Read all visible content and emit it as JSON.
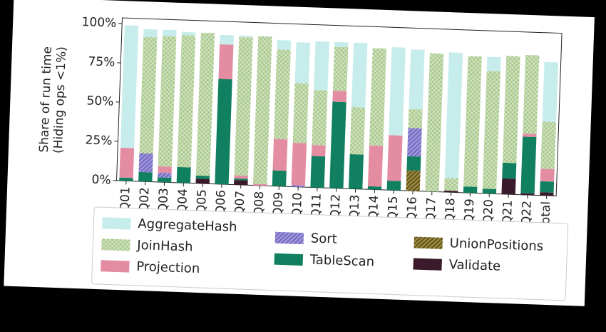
{
  "chart_data": {
    "type": "stacked_bar",
    "y_label": [
      "Share of run time",
      "(Hiding ops <1%)"
    ],
    "categories": [
      "Q01",
      "Q02",
      "Q03",
      "Q04",
      "Q05",
      "Q06",
      "Q07",
      "Q08",
      "Q09",
      "Q10",
      "Q11",
      "Q12",
      "Q13",
      "Q14",
      "Q15",
      "Q16",
      "Q17",
      "Q18",
      "Q19",
      "Q20",
      "Q21",
      "Q22",
      "Total"
    ],
    "series": [
      {
        "name": "AggregateHash",
        "color": "#c6ecec",
        "hatch": "none",
        "values": [
          78,
          5,
          4,
          2,
          0,
          6,
          1,
          0,
          6,
          26,
          31,
          3,
          41,
          0,
          56,
          38,
          0,
          80,
          0,
          9,
          0,
          0,
          38
        ]
      },
      {
        "name": "JoinHash",
        "color": "#a8c88a",
        "hatch": "x",
        "values": [
          0,
          74,
          83,
          84,
          91,
          0,
          88,
          94,
          57,
          38,
          35,
          28,
          30,
          62,
          0,
          12,
          88,
          8,
          83,
          75,
          68,
          50,
          30
        ]
      },
      {
        "name": "Projection",
        "color": "#e48ca2",
        "hatch": "none",
        "values": [
          19,
          0,
          4,
          0,
          0,
          22,
          2,
          1,
          20,
          27,
          7,
          7,
          0,
          26,
          29,
          0,
          0,
          0,
          0,
          0,
          0,
          2,
          8
        ]
      },
      {
        "name": "Sort",
        "color": "#7b70c8",
        "hatch": "/",
        "values": [
          0,
          12,
          3,
          0,
          0,
          0,
          0,
          0,
          0,
          1,
          0,
          0,
          0,
          0,
          0,
          18,
          0,
          0,
          0,
          0,
          0,
          0,
          0
        ]
      },
      {
        "name": "TableScan",
        "color": "#118060",
        "hatch": "none",
        "values": [
          2,
          6,
          3,
          10,
          2,
          67,
          1,
          0,
          10,
          0,
          20,
          55,
          22,
          2,
          6,
          9,
          0,
          0,
          4,
          3,
          10,
          36,
          7
        ]
      },
      {
        "name": "UnionPositions",
        "color": "#6e5c12",
        "hatch": "/",
        "values": [
          0,
          0,
          0,
          0,
          0,
          0,
          0,
          0,
          0,
          0,
          0,
          0,
          0,
          0,
          0,
          13,
          0,
          0,
          0,
          0,
          0,
          0,
          0
        ]
      },
      {
        "name": "Validate",
        "color": "#3b1a2c",
        "hatch": "none",
        "values": [
          0,
          0,
          0,
          0,
          3,
          0,
          3,
          0,
          0,
          0,
          0,
          0,
          0,
          0,
          0,
          0,
          0,
          1,
          0,
          0,
          10,
          1,
          2
        ]
      }
    ],
    "ylim": [
      0,
      100
    ],
    "yticks": [
      {
        "value": 0,
        "label": "0%"
      },
      {
        "value": 25,
        "label": "25%"
      },
      {
        "value": 50,
        "label": "50%"
      },
      {
        "value": 75,
        "label": "75%"
      },
      {
        "value": 100,
        "label": "100%"
      }
    ],
    "legend": "bottom"
  }
}
